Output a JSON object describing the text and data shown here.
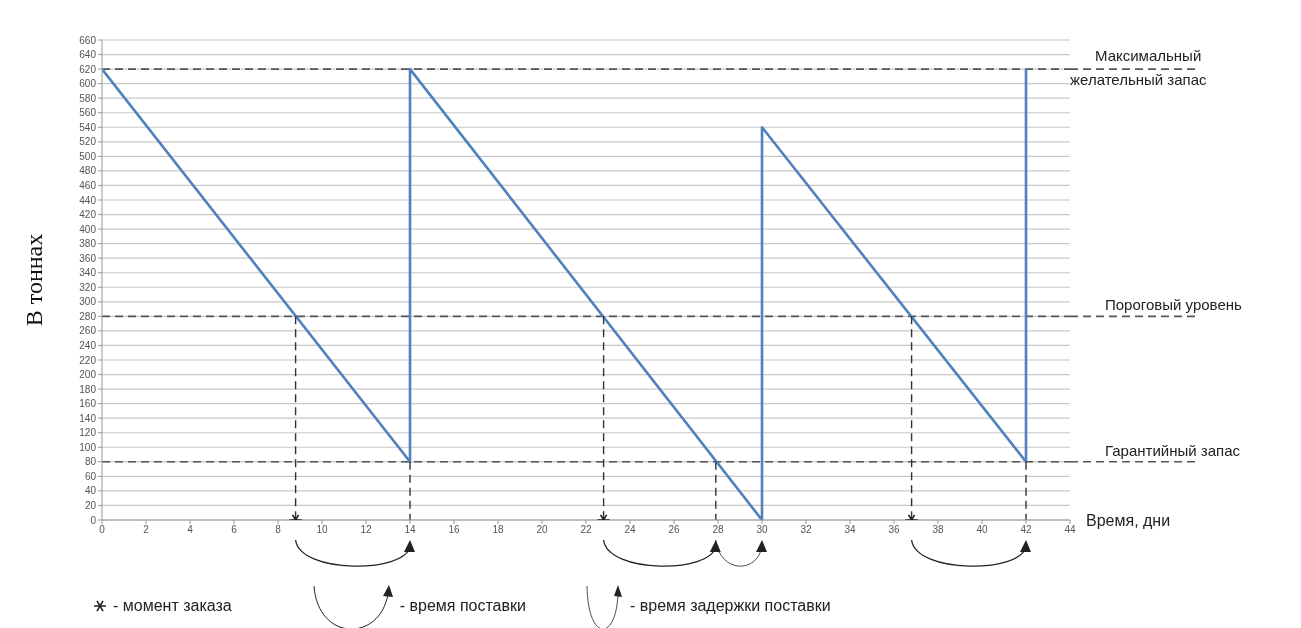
{
  "chart_data": {
    "type": "line",
    "ylabel": "В тоннах",
    "xlabel": "Время, дни",
    "xlim": [
      0,
      44
    ],
    "xticks": [
      0,
      2,
      4,
      6,
      8,
      10,
      12,
      14,
      16,
      18,
      20,
      22,
      24,
      26,
      28,
      30,
      32,
      34,
      36,
      38,
      40,
      42,
      44
    ],
    "ylim": [
      0,
      660
    ],
    "yticks": [
      0,
      20,
      40,
      60,
      80,
      100,
      120,
      140,
      160,
      180,
      200,
      220,
      240,
      260,
      280,
      300,
      320,
      340,
      360,
      380,
      400,
      420,
      440,
      460,
      480,
      500,
      520,
      540,
      560,
      580,
      600,
      620,
      640,
      660
    ],
    "grid": "y",
    "legend": "bottom",
    "line_style": "solid",
    "series": [
      {
        "color": "#4f81bd",
        "x": [
          0,
          14,
          14,
          30,
          30,
          42,
          42
        ],
        "values": [
          620,
          80,
          620,
          0,
          540,
          80,
          620
        ]
      },
      {
        "color": "#333333",
        "line_style": "dashed",
        "x": [
          8.8,
          8.8
        ],
        "values": [
          280,
          0
        ]
      },
      {
        "color": "#333333",
        "line_style": "dashed",
        "x": [
          14,
          14
        ],
        "values": [
          80,
          0
        ]
      },
      {
        "color": "#333333",
        "line_style": "dashed",
        "x": [
          22.8,
          22.8
        ],
        "values": [
          280,
          0
        ]
      },
      {
        "color": "#333333",
        "line_style": "dashed",
        "x": [
          27.9,
          27.9
        ],
        "values": [
          80,
          0
        ]
      },
      {
        "color": "#333333",
        "line_style": "dashed",
        "x": [
          36.8,
          36.8
        ],
        "values": [
          280,
          0
        ]
      },
      {
        "color": "#333333",
        "line_style": "dashed",
        "x": [
          42,
          42
        ],
        "values": [
          80,
          0
        ]
      },
      {
        "type": "scatter",
        "name": "- момент заказа",
        "color": "#222222",
        "marker": "cross",
        "x": [
          8.8,
          22.8,
          36.8
        ],
        "values": [
          0,
          0,
          0
        ]
      }
    ],
    "ref_lines": [
      {
        "axis": "y",
        "value": 620,
        "label": "Максимальный желательный запас",
        "color": "#555555",
        "line_style": "dashed"
      },
      {
        "axis": "y",
        "value": 280,
        "label": "Пороговый уровень",
        "color": "#555555",
        "line_style": "dashed"
      },
      {
        "axis": "y",
        "value": 80,
        "label": "Гарантийный запас",
        "color": "#555555",
        "line_style": "dashed"
      }
    ],
    "annotations": [
      "- время поставки",
      "- время задержки поставки"
    ]
  }
}
